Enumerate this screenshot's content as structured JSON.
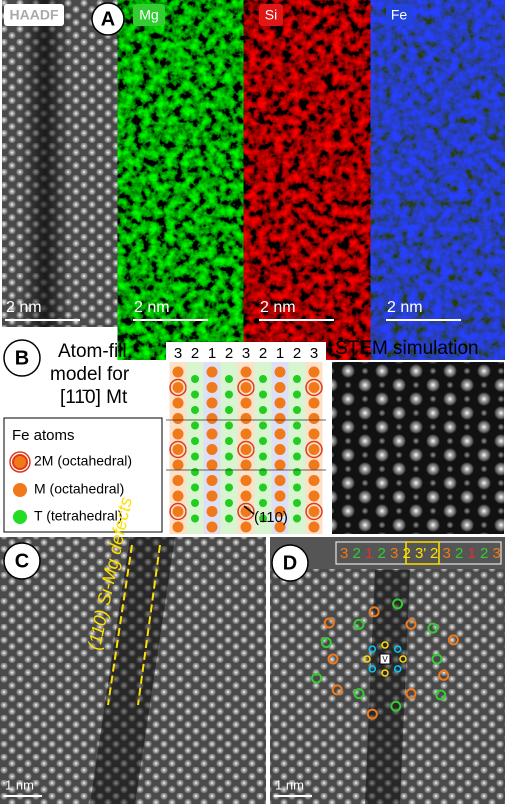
{
  "panel_a": {
    "label": "A",
    "maps": [
      {
        "label": "HAADF",
        "scale_bar": "2 nm"
      },
      {
        "label": "Mg",
        "scale_bar": "2 nm"
      },
      {
        "label": "Si",
        "scale_bar": "2 nm"
      },
      {
        "label": "Fe",
        "scale_bar": "2 nm"
      }
    ]
  },
  "panel_b": {
    "label": "B",
    "title_lines": [
      "Atom-fill",
      "model for",
      "[11̄0] Mt"
    ],
    "column_labels": [
      "3",
      "2",
      "1",
      "2",
      "3",
      "2",
      "1",
      "2",
      "3"
    ],
    "plane_label": "(110)",
    "simulation_title": "STEM simulation",
    "legend": {
      "title": "Fe atoms",
      "items": [
        "2M (octahedral)",
        "M (octahedral)",
        "T (tetrahedral)"
      ]
    }
  },
  "panel_c": {
    "label": "C",
    "annotation": "(110) Si-Mg defects",
    "scale_bar": "1 nm"
  },
  "panel_d": {
    "label": "D",
    "sequence": [
      "3",
      "2",
      "1",
      "2",
      "3",
      "2",
      "3'",
      "2",
      "3",
      "2",
      "1",
      "2",
      "3"
    ],
    "vacancy": "V",
    "scale_bar": "1 nm"
  }
}
